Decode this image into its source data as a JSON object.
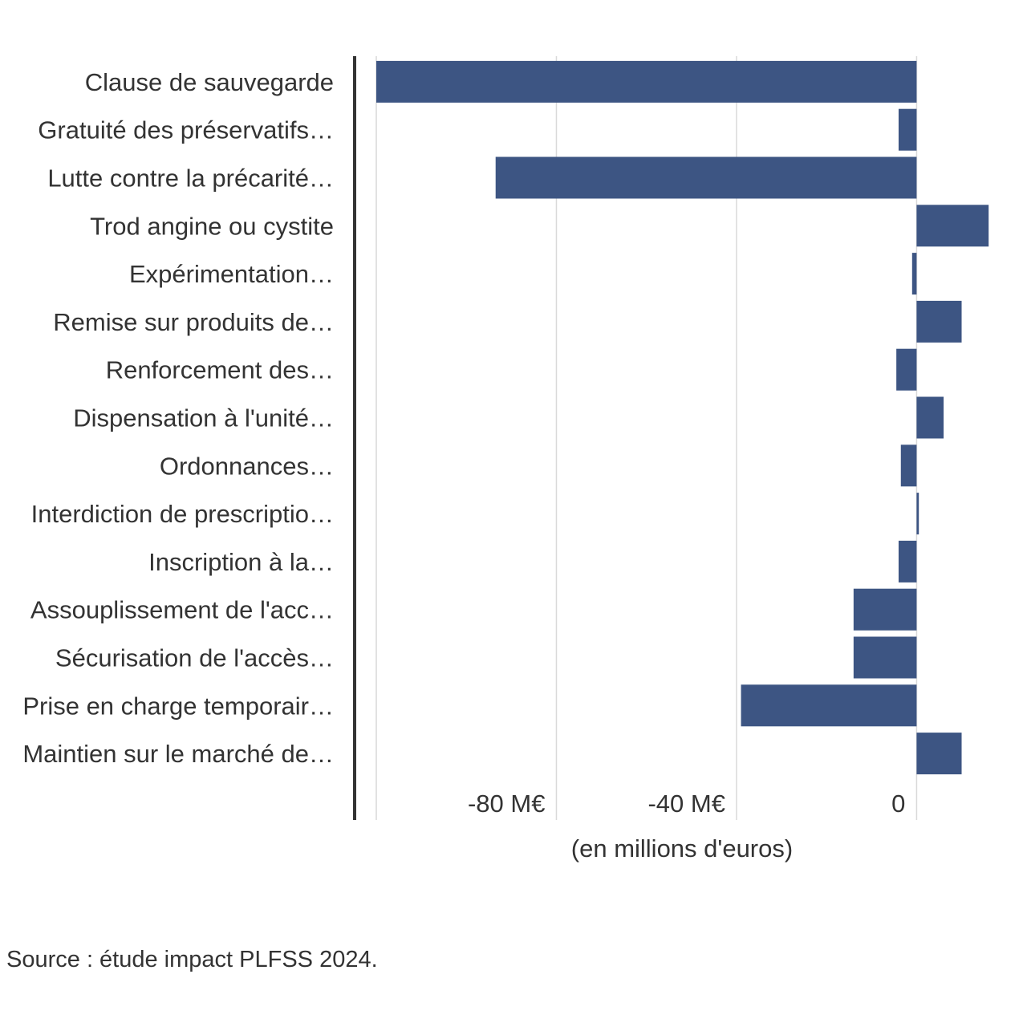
{
  "chart_data": {
    "type": "bar",
    "orientation": "horizontal",
    "categories": [
      "Clause de sauvegarde",
      "Gratuité des préservatifs…",
      "Lutte contre la précarité…",
      "Trod angine ou cystite",
      "Expérimentation…",
      "Remise sur produits de…",
      "Renforcement des…",
      "Dispensation à l'unité…",
      "Ordonnances…",
      "Interdiction de prescriptio…",
      "Inscription à la…",
      "Assouplissement de l'acc…",
      "Sécurisation de l'accès…",
      "Prise en charge temporair…",
      "Maintien sur le marché de…"
    ],
    "values": [
      -120,
      -4,
      -93.5,
      16,
      -1,
      10,
      -4.5,
      6,
      -3.5,
      0.5,
      -4,
      -14,
      -14,
      -39,
      10
    ],
    "xlim": [
      -120,
      16.5
    ],
    "ticks": [
      {
        "value": -80,
        "label": "-80 M€"
      },
      {
        "value": -40,
        "label": "-40 M€"
      },
      {
        "value": 0,
        "label": "0"
      }
    ],
    "xlabel": "(en millions d'euros)",
    "ylabel": "",
    "grid": true,
    "bar_color": "#3d5583",
    "grid_color": "#d9d9d9",
    "axis_color": "#333333"
  },
  "source": "Source : étude impact PLFSS 2024."
}
